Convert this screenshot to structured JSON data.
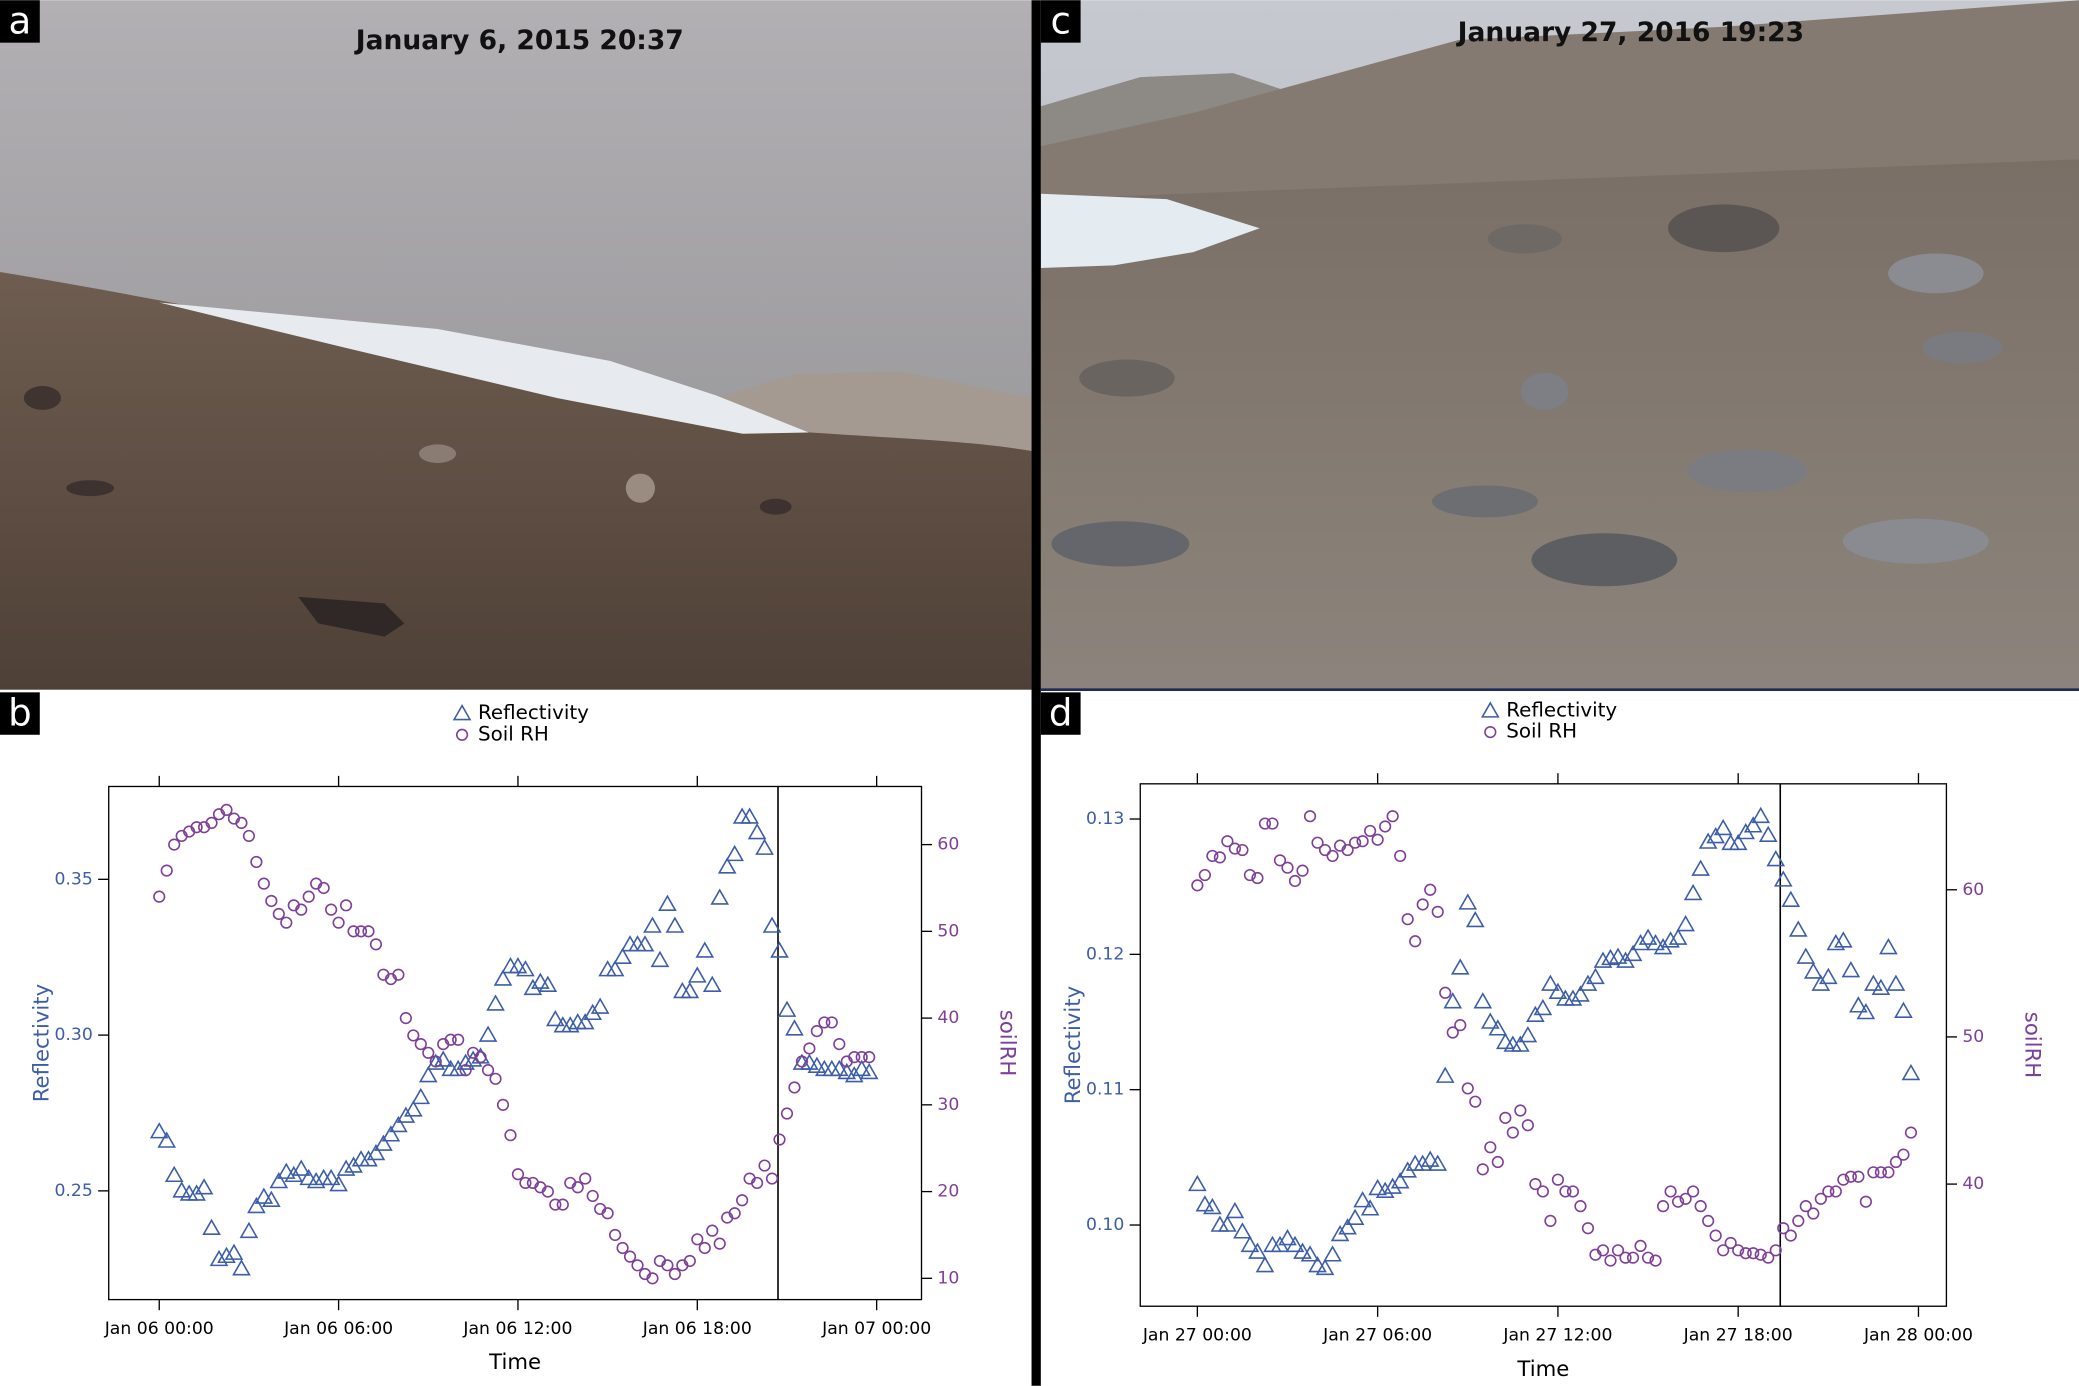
{
  "photos": [
    {
      "label": "a",
      "caption": "January 6, 2015 20:37"
    },
    {
      "label": "c",
      "caption": "January 27, 2016 19:23"
    }
  ],
  "chart_data": [
    {
      "type": "scatter",
      "panel_label": "b",
      "x_label": "Time",
      "y_label": "Reflectivity",
      "y2_label": "soilRH",
      "legend": "top",
      "xlim": [
        -1.69,
        25.5
      ],
      "ylim": [
        0.2151,
        0.3798
      ],
      "y2lim": [
        7.55,
        66.7
      ],
      "xticks": [
        {
          "value": 0,
          "label": "Jan 06 00:00"
        },
        {
          "value": 6,
          "label": "Jan 06 06:00"
        },
        {
          "value": 12,
          "label": "Jan 06 12:00"
        },
        {
          "value": 18,
          "label": "Jan 06 18:00"
        },
        {
          "value": 24,
          "label": "Jan 07 00:00"
        }
      ],
      "yticks": [
        0.25,
        {
          "value": 0.3,
          "label": "0.30"
        },
        0.35
      ],
      "y2ticks": [
        10,
        20,
        30,
        40,
        50,
        60
      ],
      "vline": 20.7,
      "x": [
        0,
        0.25,
        0.5,
        0.75,
        1,
        1.25,
        1.5,
        1.75,
        2,
        2.25,
        2.5,
        2.75,
        3,
        3.25,
        3.5,
        3.75,
        4,
        4.25,
        4.5,
        4.75,
        5,
        5.25,
        5.5,
        5.75,
        6,
        6.25,
        6.5,
        6.75,
        7,
        7.25,
        7.5,
        7.75,
        8,
        8.25,
        8.5,
        8.75,
        9,
        9.25,
        9.5,
        9.75,
        10,
        10.25,
        10.5,
        10.75,
        11,
        11.25,
        11.5,
        11.75,
        12,
        12.25,
        12.5,
        12.75,
        13,
        13.25,
        13.5,
        13.75,
        14,
        14.25,
        14.5,
        14.75,
        15,
        15.25,
        15.5,
        15.75,
        16,
        16.25,
        16.5,
        16.75,
        17,
        17.25,
        17.5,
        17.75,
        18,
        18.25,
        18.5,
        18.75,
        19,
        19.25,
        19.5,
        19.75,
        20,
        20.25,
        20.5,
        20.75,
        21,
        21.25,
        21.5,
        21.75,
        22,
        22.25,
        22.5,
        22.75,
        23,
        23.25,
        23.5,
        23.75
      ],
      "series": [
        {
          "name": "Reflectivity",
          "color": "#3c5ea8",
          "marker": "triangle",
          "values": [
            0.269,
            0.266,
            0.255,
            0.25,
            0.249,
            0.249,
            0.251,
            0.238,
            0.228,
            0.229,
            0.23,
            0.225,
            0.237,
            0.245,
            0.248,
            0.247,
            0.253,
            0.256,
            0.255,
            0.257,
            0.254,
            0.253,
            0.254,
            0.254,
            0.252,
            0.257,
            0.258,
            0.26,
            0.26,
            0.262,
            0.265,
            0.268,
            0.271,
            0.274,
            0.276,
            0.28,
            0.287,
            0.291,
            0.292,
            0.289,
            0.289,
            0.291,
            0.292,
            0.293,
            0.3,
            0.31,
            0.318,
            0.322,
            0.322,
            0.321,
            0.315,
            0.317,
            0.316,
            0.305,
            0.303,
            0.303,
            0.304,
            0.304,
            0.307,
            0.309,
            0.321,
            0.321,
            0.325,
            0.329,
            0.329,
            0.329,
            0.335,
            0.324,
            0.342,
            0.335,
            0.314,
            0.314,
            0.319,
            0.327,
            0.316,
            0.344,
            0.354,
            0.358,
            0.37,
            0.37,
            0.365,
            0.36,
            0.335,
            0.327,
            0.308,
            0.302,
            0.291,
            0.291,
            0.29,
            0.289,
            0.289,
            0.289,
            0.288,
            0.287,
            0.289,
            0.288
          ]
        },
        {
          "name": "Soil RH",
          "color": "#7e3f98",
          "marker": "circle",
          "axis": "y2",
          "values": [
            54,
            57,
            60,
            61,
            61.5,
            62,
            62,
            62.5,
            63.5,
            64,
            63,
            62.5,
            61,
            58,
            55.5,
            53.5,
            52,
            51,
            53,
            52.5,
            54,
            55.5,
            55,
            52.5,
            51,
            53,
            50,
            50,
            50,
            48.5,
            45,
            44.5,
            45,
            40,
            38,
            37,
            36,
            35,
            37,
            37.5,
            37.5,
            34,
            36,
            35.5,
            34,
            33,
            30,
            26.5,
            22,
            21,
            21,
            20.5,
            20,
            18.5,
            18.5,
            21,
            20.5,
            21.5,
            19.5,
            18,
            17.5,
            15,
            13.5,
            12.5,
            11.5,
            10.5,
            10,
            12,
            11.5,
            10.5,
            11.5,
            12,
            14.5,
            13.5,
            15.5,
            14,
            17,
            17.5,
            19,
            21.5,
            21,
            23,
            21.5,
            26,
            29,
            32,
            35,
            36.5,
            38.5,
            39.5,
            39.5,
            37,
            35,
            35.5,
            35.5,
            35.5
          ]
        }
      ]
    },
    {
      "type": "scatter",
      "panel_label": "d",
      "x_label": "Time",
      "y_label": "Reflectivity",
      "y2_label": "soilRH",
      "legend": "top",
      "xlim": [
        -1.9,
        24.93
      ],
      "ylim": [
        0.094,
        0.1326
      ],
      "y2lim": [
        31.7,
        67.2
      ],
      "xticks": [
        {
          "value": 0,
          "label": "Jan 27 00:00"
        },
        {
          "value": 6,
          "label": "Jan 27 06:00"
        },
        {
          "value": 12,
          "label": "Jan 27 12:00"
        },
        {
          "value": 18,
          "label": "Jan 27 18:00"
        },
        {
          "value": 24,
          "label": "Jan 28 00:00"
        }
      ],
      "yticks": [
        {
          "value": 0.1,
          "label": "0.10"
        },
        0.11,
        0.12,
        0.13
      ],
      "y2ticks": [
        40,
        50,
        60
      ],
      "vline": 19.4,
      "x": [
        0,
        0.25,
        0.5,
        0.75,
        1,
        1.25,
        1.5,
        1.75,
        2,
        2.25,
        2.5,
        2.75,
        3,
        3.25,
        3.5,
        3.75,
        4,
        4.25,
        4.5,
        4.75,
        5,
        5.25,
        5.5,
        5.75,
        6,
        6.25,
        6.5,
        6.75,
        7,
        7.25,
        7.5,
        7.75,
        8,
        8.25,
        8.5,
        8.75,
        9,
        9.25,
        9.5,
        9.75,
        10,
        10.25,
        10.5,
        10.75,
        11,
        11.25,
        11.5,
        11.75,
        12,
        12.25,
        12.5,
        12.75,
        13,
        13.25,
        13.5,
        13.75,
        14,
        14.25,
        14.5,
        14.75,
        15,
        15.25,
        15.5,
        15.75,
        16,
        16.25,
        16.5,
        16.75,
        17,
        17.25,
        17.5,
        17.75,
        18,
        18.25,
        18.5,
        18.75,
        19,
        19.25,
        19.5,
        19.75,
        20,
        20.25,
        20.5,
        20.75,
        21,
        21.25,
        21.5,
        21.75,
        22,
        22.25,
        22.5,
        22.75,
        23,
        23.25,
        23.5,
        23.75
      ],
      "series": [
        {
          "name": "Reflectivity",
          "color": "#3c5ea8",
          "marker": "triangle",
          "values": [
            0.103,
            0.1015,
            0.1013,
            0.1,
            0.1,
            0.101,
            0.0995,
            0.0985,
            0.098,
            0.097,
            0.0985,
            0.0985,
            0.099,
            0.0985,
            0.098,
            0.0978,
            0.097,
            0.0968,
            0.0978,
            0.0993,
            0.0998,
            0.1005,
            0.1018,
            0.1012,
            0.1027,
            0.1025,
            0.1028,
            0.1032,
            0.104,
            0.1045,
            0.1045,
            0.1048,
            0.1045,
            0.111,
            0.1165,
            0.119,
            0.1238,
            0.1225,
            0.1165,
            0.115,
            0.1145,
            0.1135,
            0.1133,
            0.1133,
            0.114,
            0.1155,
            0.116,
            0.1178,
            0.1172,
            0.1167,
            0.1167,
            0.117,
            0.1178,
            0.1183,
            0.1195,
            0.1197,
            0.1198,
            0.1195,
            0.12,
            0.1208,
            0.1212,
            0.1208,
            0.1205,
            0.121,
            0.1212,
            0.1222,
            0.1245,
            0.1263,
            0.1283,
            0.1287,
            0.1293,
            0.1282,
            0.1282,
            0.129,
            0.1295,
            0.1302,
            0.1288,
            0.127,
            0.1255,
            0.124,
            0.1218,
            0.1198,
            0.1187,
            0.1178,
            0.1183,
            0.1208,
            0.121,
            0.1188,
            0.1162,
            0.1157,
            0.1178,
            0.1175,
            0.1205,
            0.1178,
            0.1158,
            0.1112
          ]
        },
        {
          "name": "Soil RH",
          "color": "#7e3f98",
          "marker": "circle",
          "axis": "y2",
          "values": [
            60.3,
            61,
            62.3,
            62.2,
            63.3,
            62.8,
            62.7,
            61,
            60.8,
            64.5,
            64.5,
            62,
            61.5,
            60.6,
            61.3,
            65,
            63.2,
            62.7,
            62.3,
            63,
            62.7,
            63.2,
            63.3,
            64,
            63.4,
            64.3,
            65,
            62.3,
            58,
            56.5,
            59,
            60,
            58.5,
            53,
            50.3,
            50.8,
            46.5,
            45.6,
            41,
            42.5,
            41.5,
            44.5,
            43.5,
            45,
            44,
            40,
            39.5,
            37.5,
            40.3,
            39.5,
            39.5,
            38.5,
            37,
            35.2,
            35.5,
            34.8,
            35.5,
            35,
            35,
            35.8,
            35,
            34.8,
            38.5,
            39.5,
            38.8,
            39,
            39.5,
            38.5,
            37.5,
            36.5,
            35.5,
            36,
            35.5,
            35.3,
            35.3,
            35.2,
            35,
            35.5,
            37,
            36.5,
            37.5,
            38.5,
            38,
            39,
            39.5,
            39.5,
            40.3,
            40.5,
            40.5,
            38.8,
            40.8,
            40.8,
            40.8,
            41.5,
            42,
            43.5
          ]
        }
      ]
    }
  ]
}
